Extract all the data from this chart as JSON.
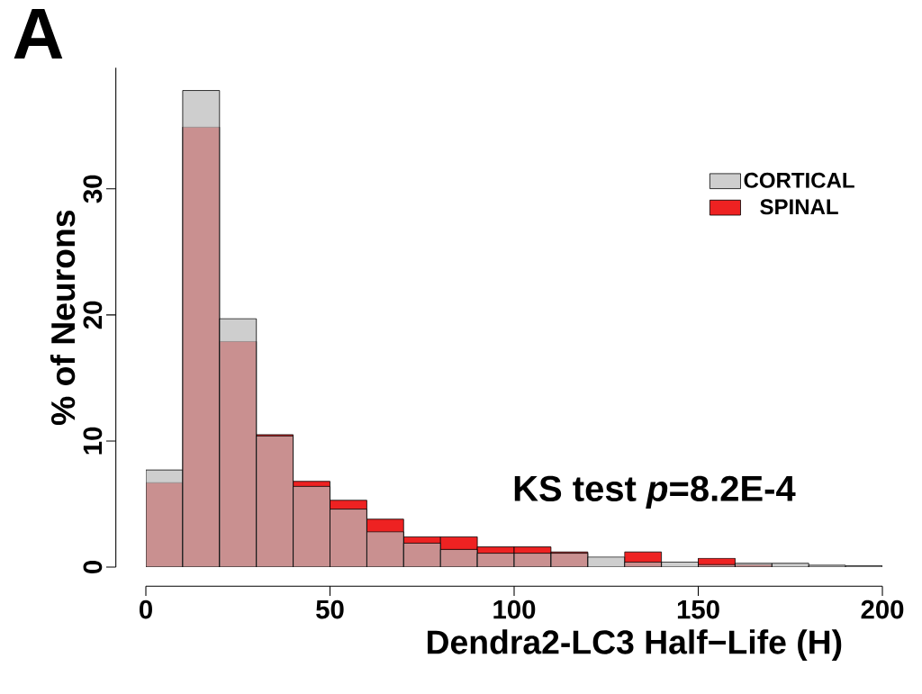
{
  "chart_data": {
    "type": "histogram",
    "title": "A",
    "xlabel": "Dendra2-LC3 Half−Life (H)",
    "ylabel": "% of Neurons",
    "bins": [
      0,
      10,
      20,
      30,
      40,
      50,
      60,
      70,
      80,
      90,
      100,
      110,
      120,
      130,
      140,
      150,
      160,
      170,
      180,
      190,
      200
    ],
    "series": [
      {
        "name": "CORTICAL",
        "color": "#bbbbbb",
        "values": [
          7.7,
          37.8,
          19.7,
          10.4,
          6.4,
          4.6,
          2.8,
          1.9,
          1.4,
          1.1,
          1.1,
          1.1,
          0.8,
          0.4,
          0.4,
          0.2,
          0.3,
          0.3,
          0.15,
          0.1
        ]
      },
      {
        "name": "SPINAL",
        "color": "#ee2222",
        "values": [
          6.7,
          34.9,
          17.9,
          10.5,
          6.8,
          5.3,
          3.8,
          2.4,
          2.4,
          1.6,
          1.6,
          1.2,
          null,
          1.2,
          null,
          0.7,
          0.2,
          null,
          null,
          null
        ]
      }
    ],
    "xlim": [
      0,
      200
    ],
    "xticks": [
      0,
      50,
      100,
      150,
      200
    ],
    "ylim": [
      0,
      39.6
    ],
    "yticks": [
      0,
      10,
      20,
      30
    ],
    "legend": "top right",
    "grid": false,
    "annotations": [
      "KS test *p*=8.2E-4"
    ]
  }
}
